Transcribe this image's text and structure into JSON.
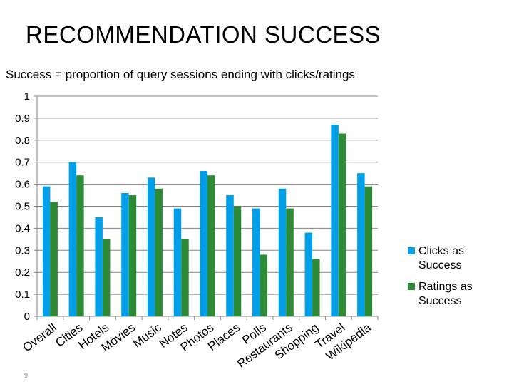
{
  "slide": {
    "title": "RECOMMENDATION SUCCESS",
    "subtitle": "Success = proportion of query sessions ending with clicks/ratings",
    "page_number": "9"
  },
  "chart_data": {
    "type": "bar",
    "categories": [
      "Overall",
      "Cities",
      "Hotels",
      "Movies",
      "Music",
      "Notes",
      "Photos",
      "Places",
      "Polls",
      "Restaurants",
      "Shopping",
      "Travel",
      "Wikipedia"
    ],
    "series": [
      {
        "name": "Clicks as Success",
        "color": "#009fe8",
        "values": [
          0.59,
          0.7,
          0.45,
          0.56,
          0.63,
          0.49,
          0.66,
          0.55,
          0.49,
          0.58,
          0.38,
          0.87,
          0.65
        ]
      },
      {
        "name": "Ratings as Success",
        "color": "#2e8b35",
        "values": [
          0.52,
          0.64,
          0.35,
          0.55,
          0.58,
          0.35,
          0.64,
          0.5,
          0.28,
          0.49,
          0.26,
          0.83,
          0.59
        ]
      }
    ],
    "ylim": [
      0,
      1
    ],
    "yticks": [
      "0",
      "0.1",
      "0.2",
      "0.3",
      "0.4",
      "0.5",
      "0.6",
      "0.7",
      "0.8",
      "0.9",
      "1"
    ],
    "grid": true,
    "legend_position": "right",
    "legend_lines": [
      [
        "Clicks as",
        "Success"
      ],
      [
        "Ratings as",
        "Success"
      ]
    ]
  }
}
